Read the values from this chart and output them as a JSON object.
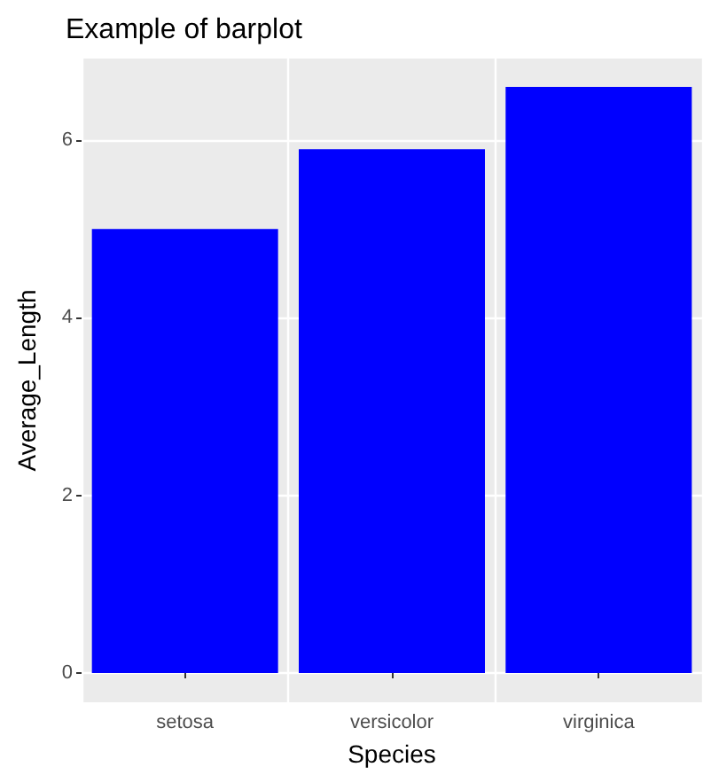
{
  "chart_data": {
    "type": "bar",
    "title": "Example of barplot",
    "xlabel": "Species",
    "ylabel": "Average_Length",
    "categories": [
      "setosa",
      "versicolor",
      "virginica"
    ],
    "values": [
      5.0,
      5.9,
      6.6
    ],
    "color": "#0000ff",
    "ylim": [
      -0.33,
      6.92
    ],
    "yticks": [
      0,
      2,
      4,
      6
    ],
    "grid": true
  }
}
